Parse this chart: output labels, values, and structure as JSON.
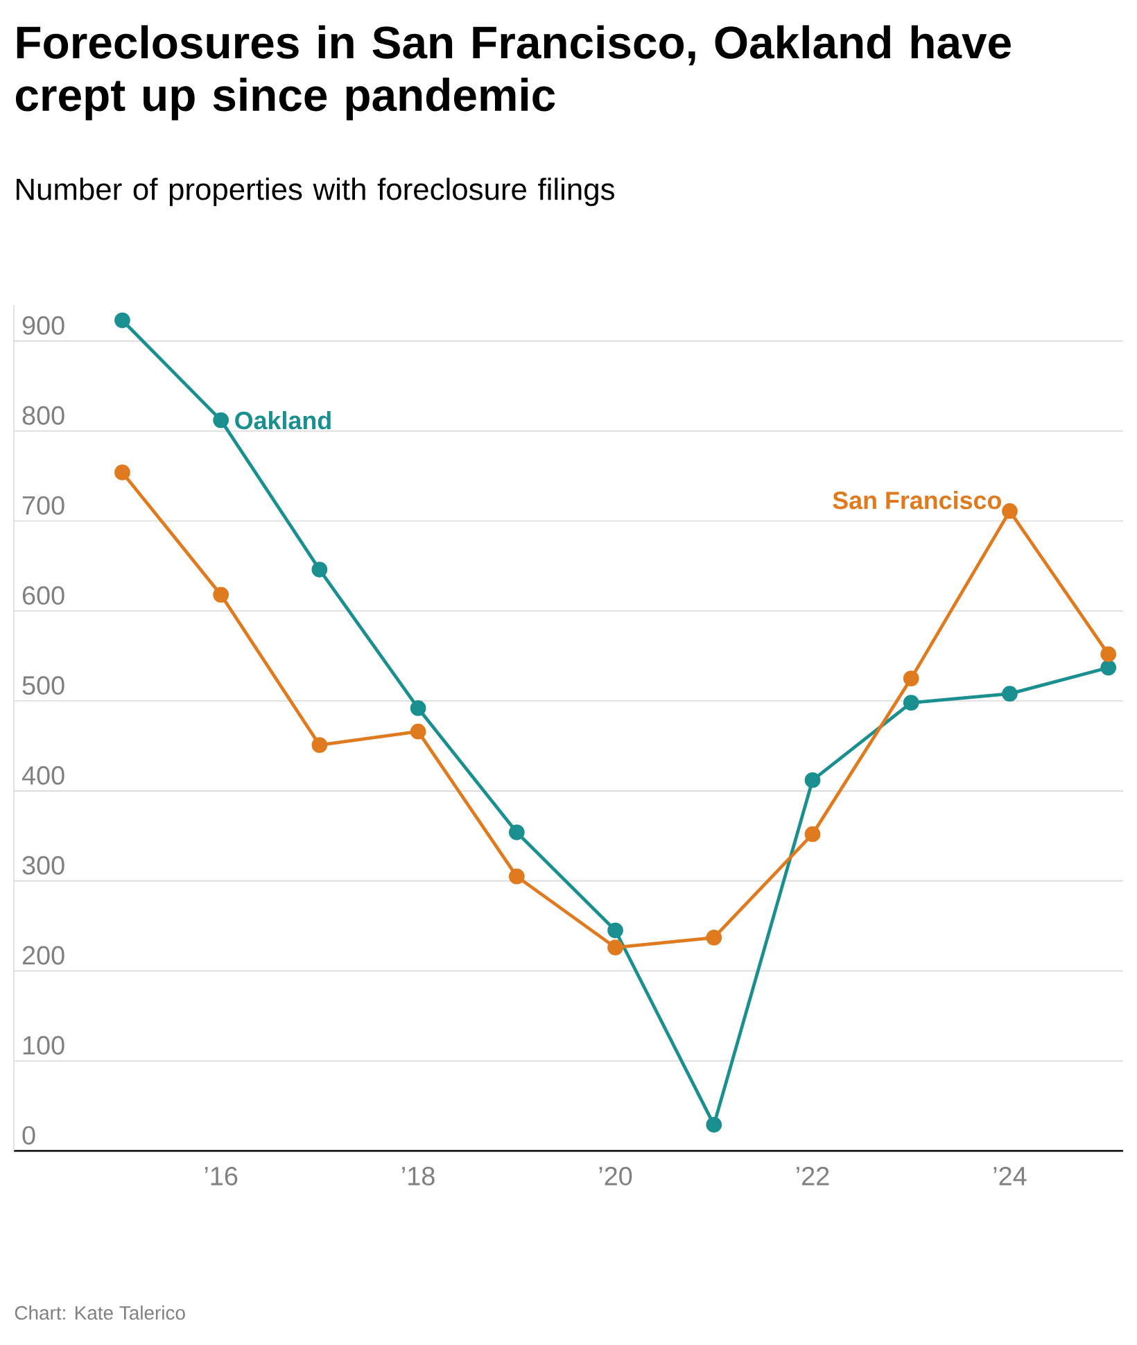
{
  "chart_data": {
    "type": "line",
    "title": "Foreclosures in San Francisco, Oakland have crept up since pandemic",
    "subtitle": "Number of properties with foreclosure filings",
    "x": [
      2015,
      2016,
      2017,
      2018,
      2019,
      2020,
      2021,
      2022,
      2023,
      2024,
      2025
    ],
    "series": [
      {
        "name": "Oakland",
        "color": "#1a8f8f",
        "values": [
          923,
          812,
          646,
          492,
          354,
          245,
          29,
          412,
          498,
          508,
          537
        ]
      },
      {
        "name": "San Francisco",
        "color": "#e07a1f",
        "values": [
          754,
          618,
          451,
          466,
          305,
          226,
          237,
          352,
          525,
          711,
          552
        ]
      }
    ],
    "xlim": [
      2013.9,
      2025.15
    ],
    "ylim": [
      0,
      940
    ],
    "xticks": [
      {
        "value": 2016,
        "label": "’16"
      },
      {
        "value": 2018,
        "label": "’18"
      },
      {
        "value": 2020,
        "label": "’20"
      },
      {
        "value": 2022,
        "label": "’22"
      },
      {
        "value": 2024,
        "label": "’24"
      }
    ],
    "yticks": [
      0,
      100,
      200,
      300,
      400,
      500,
      600,
      700,
      800,
      900
    ],
    "grid": "y",
    "marker": "circle",
    "line_style": "solid",
    "annotations": [
      "Chart: Kate Talerico"
    ]
  }
}
